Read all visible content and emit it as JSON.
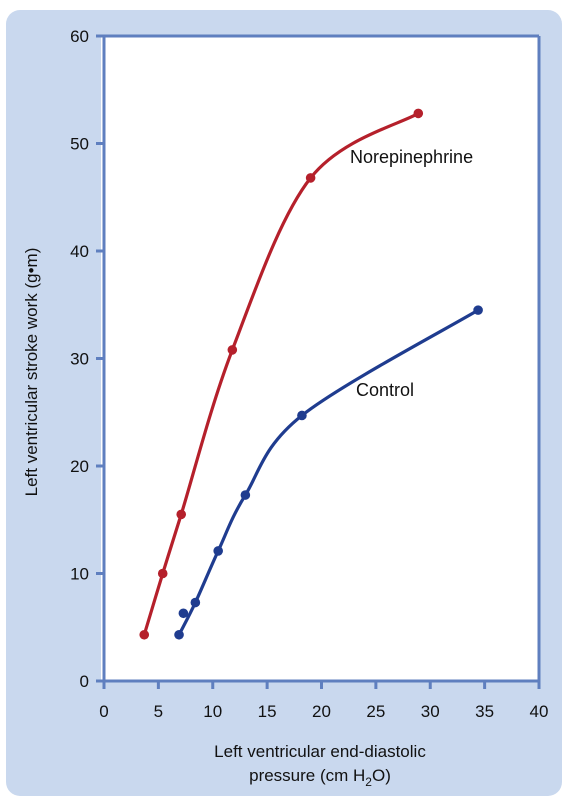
{
  "chart_data": {
    "type": "line",
    "title": "",
    "xlabel_line1": "Left ventricular end-diastolic",
    "xlabel_line2_pre": "pressure (cm H",
    "xlabel_line2_sub": "2",
    "xlabel_line2_post": "O)",
    "ylabel": "Left ventricular stroke work (g•m)",
    "xlim": [
      0,
      40
    ],
    "ylim": [
      0,
      60
    ],
    "xticks": [
      0,
      5,
      10,
      15,
      20,
      25,
      30,
      35,
      40
    ],
    "yticks": [
      0,
      10,
      20,
      30,
      40,
      50,
      60
    ],
    "grid": false,
    "series": [
      {
        "name": "Norepinephrine",
        "color": "#b5202b",
        "x": [
          3.7,
          5.4,
          7.1,
          11.8,
          19.0,
          28.9
        ],
        "y": [
          4.3,
          10.0,
          15.5,
          30.8,
          46.8,
          52.8
        ]
      },
      {
        "name": "Control",
        "color": "#1f3c8f",
        "x": [
          6.9,
          7.3,
          8.4,
          10.5,
          13.0,
          18.2,
          34.4
        ],
        "y": [
          4.3,
          6.3,
          7.3,
          12.1,
          17.3,
          24.7,
          34.5
        ]
      }
    ],
    "axis_color": "#5f7fbf"
  }
}
